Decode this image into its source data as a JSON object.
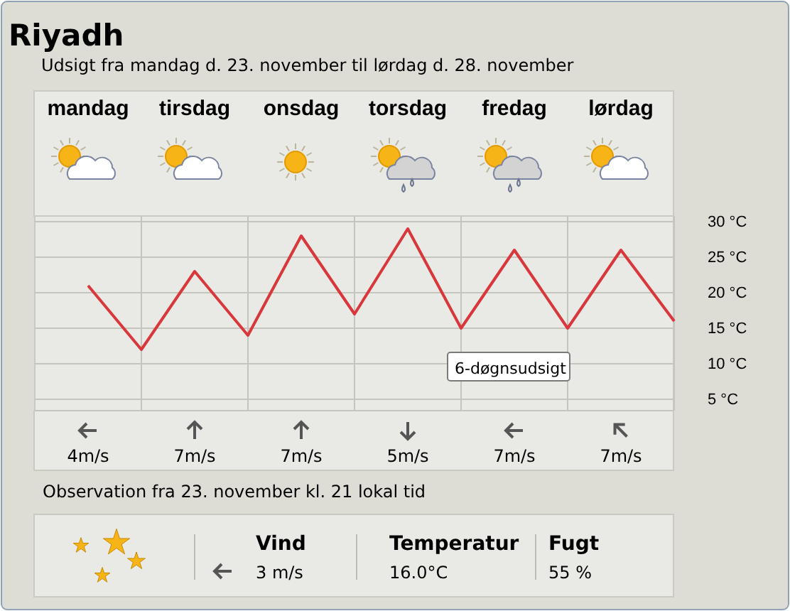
{
  "chart_data": {
    "type": "line",
    "title": "Riyadh",
    "subtitle": "Udsigt fra mandag d. 23. november til lørdag d. 28. november",
    "categories": [
      "mandag",
      null,
      "tirsdag",
      null,
      "onsdag",
      null,
      "torsdag",
      null,
      "fredag",
      null,
      "lørdag",
      null
    ],
    "series": [
      {
        "color": "#d8373b",
        "values": [
          21,
          12,
          23,
          14,
          28,
          17,
          29,
          15,
          26,
          15,
          26,
          16
        ]
      }
    ],
    "ylim": [
      3.4,
      30.8
    ],
    "yticks": [
      {
        "value": 5,
        "label": "5 °C"
      },
      {
        "value": 10,
        "label": "10 °C"
      },
      {
        "value": 15,
        "label": "15 °C"
      },
      {
        "value": 20,
        "label": "20 °C"
      },
      {
        "value": 25,
        "label": "25 °C"
      },
      {
        "value": 30,
        "label": "30 °C"
      }
    ],
    "grid": true,
    "marker": "none",
    "line_style": "solid",
    "annotations": [
      "6-døgnsudsigt",
      "4m/s",
      "7m/s",
      "7m/s",
      "5m/s",
      "7m/s",
      "7m/s",
      "Observation fra 23. november kl. 21 lokal tid",
      "Vind",
      "3 m/s",
      "Temperatur",
      "16.0°C",
      "Fugt",
      "55 %"
    ]
  }
}
